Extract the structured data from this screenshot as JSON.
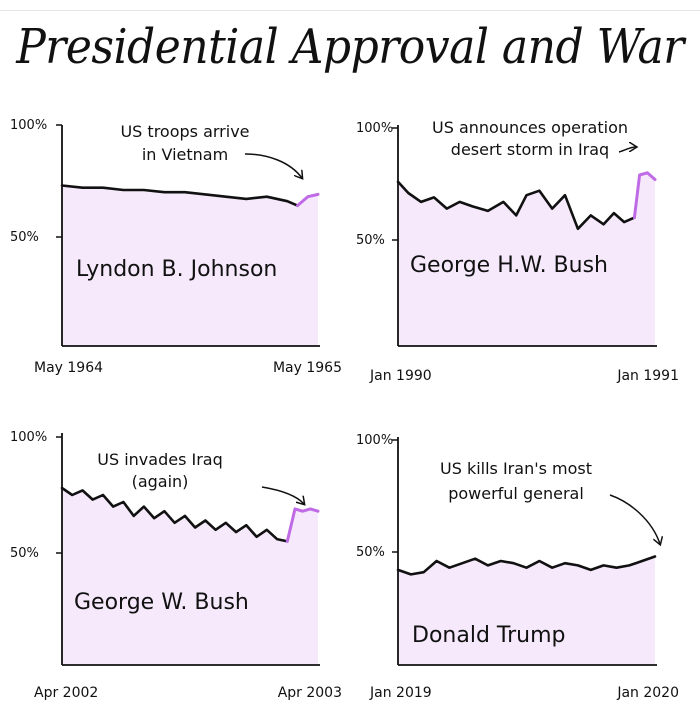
{
  "title": "Presidential Approval and War",
  "colors": {
    "line": "#111111",
    "highlight": "#c06be6",
    "fill": "#f5e9fb",
    "axis": "#111111"
  },
  "chart_data": [
    {
      "type": "area",
      "president": "Lyndon B. Johnson",
      "ytick_labels": [
        "100%",
        "50%"
      ],
      "ylim": [
        0,
        100
      ],
      "x_start_label": "May 1964",
      "x_end_label": "May 1965",
      "annotation": [
        "US troops arrive",
        "in Vietnam"
      ],
      "series": [
        {
          "x": [
            0,
            0.08,
            0.16,
            0.24,
            0.32,
            0.4,
            0.48,
            0.56,
            0.64,
            0.72,
            0.8,
            0.88,
            0.92
          ],
          "values": [
            73,
            72,
            72,
            71,
            71,
            70,
            70,
            69,
            68,
            67,
            68,
            66,
            64
          ]
        },
        {
          "highlight": true,
          "x": [
            0.92,
            0.96,
            1.0
          ],
          "values": [
            64,
            68,
            69
          ]
        }
      ]
    },
    {
      "type": "area",
      "president": "George H.W. Bush",
      "ytick_labels": [
        "100%",
        "50%"
      ],
      "ylim": [
        0,
        100
      ],
      "x_start_label": "Jan 1990",
      "x_end_label": "Jan 1991",
      "annotation": [
        "US announces operation",
        "desert storm in Iraq"
      ],
      "series": [
        {
          "x": [
            0,
            0.04,
            0.09,
            0.14,
            0.19,
            0.24,
            0.29,
            0.35,
            0.41,
            0.46,
            0.5,
            0.55,
            0.6,
            0.65,
            0.7,
            0.75,
            0.8,
            0.84,
            0.88,
            0.92
          ],
          "values": [
            76,
            71,
            67,
            69,
            64,
            67,
            65,
            63,
            67,
            61,
            70,
            72,
            64,
            70,
            55,
            61,
            57,
            62,
            58,
            60
          ]
        },
        {
          "highlight": true,
          "x": [
            0.92,
            0.94,
            0.97,
            1.0
          ],
          "values": [
            60,
            79,
            80,
            77
          ]
        }
      ]
    },
    {
      "type": "area",
      "president": "George W. Bush",
      "ytick_labels": [
        "100%",
        "50%"
      ],
      "ylim": [
        0,
        100
      ],
      "x_start_label": "Apr 2002",
      "x_end_label": "Apr 2003",
      "annotation": [
        "US invades Iraq",
        "(again)"
      ],
      "series": [
        {
          "x": [
            0,
            0.04,
            0.08,
            0.12,
            0.16,
            0.2,
            0.24,
            0.28,
            0.32,
            0.36,
            0.4,
            0.44,
            0.48,
            0.52,
            0.56,
            0.6,
            0.64,
            0.68,
            0.72,
            0.76,
            0.8,
            0.84,
            0.88
          ],
          "values": [
            78,
            75,
            77,
            73,
            75,
            70,
            72,
            66,
            70,
            65,
            68,
            63,
            66,
            61,
            64,
            60,
            63,
            59,
            62,
            57,
            60,
            56,
            55
          ]
        },
        {
          "highlight": true,
          "x": [
            0.88,
            0.91,
            0.94,
            0.97,
            1.0
          ],
          "values": [
            55,
            69,
            68,
            69,
            68
          ]
        }
      ]
    },
    {
      "type": "area",
      "president": "Donald Trump",
      "ytick_labels": [
        "100%",
        "50%"
      ],
      "ylim": [
        0,
        100
      ],
      "x_start_label": "Jan 2019",
      "x_end_label": "Jan 2020",
      "annotation": [
        "US kills Iran's most",
        "powerful general"
      ],
      "series": [
        {
          "x": [
            0,
            0.05,
            0.1,
            0.15,
            0.2,
            0.25,
            0.3,
            0.35,
            0.4,
            0.45,
            0.5,
            0.55,
            0.6,
            0.65,
            0.7,
            0.75,
            0.8,
            0.85,
            0.9,
            0.95,
            1.0
          ],
          "values": [
            42,
            40,
            41,
            46,
            43,
            45,
            47,
            44,
            46,
            45,
            43,
            46,
            43,
            45,
            44,
            42,
            44,
            43,
            44,
            46,
            48
          ]
        }
      ]
    }
  ]
}
